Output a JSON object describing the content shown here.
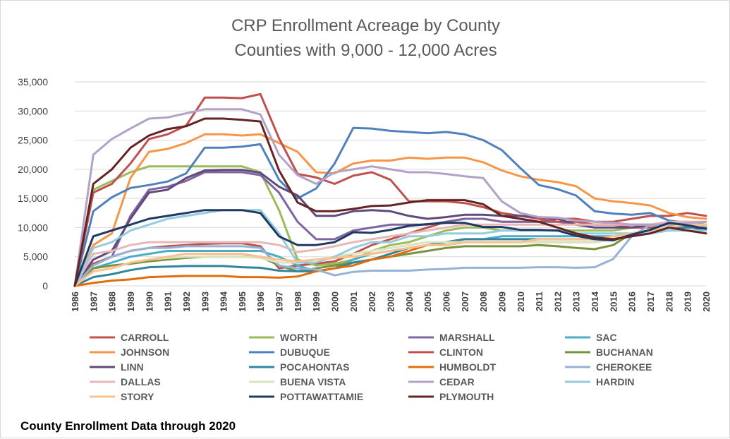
{
  "chart_data": {
    "type": "line",
    "title": "CRP Enrollment Acreage by County",
    "subtitle": "Counties with 9,000 - 12,000 Acres",
    "footnote": "County Enrollment Data through 2020",
    "xlabel": "",
    "ylabel": "",
    "ylim": [
      0,
      35000
    ],
    "ytick_step": 5000,
    "ytick_labels": [
      "0",
      "5,000",
      "10,000",
      "15,000",
      "20,000",
      "25,000",
      "30,000",
      "35,000"
    ],
    "grid": true,
    "legend_position": "bottom",
    "x": [
      "1986",
      "1987",
      "1988",
      "1989",
      "1990",
      "1991",
      "1992",
      "1993",
      "1994",
      "1995",
      "1996",
      "1997",
      "1998",
      "1999",
      "2000",
      "2001",
      "2002",
      "2003",
      "2004",
      "2005",
      "2006",
      "2007",
      "2008",
      "2009",
      "2010",
      "2011",
      "2012",
      "2013",
      "2014",
      "2015",
      "2016",
      "2017",
      "2018",
      "2019",
      "2020"
    ],
    "series": [
      {
        "name": "CARROLL",
        "color": "#c0504d",
        "values": [
          0,
          3800,
          5000,
          6000,
          6500,
          6800,
          7000,
          7200,
          7300,
          7300,
          6800,
          3000,
          3500,
          3800,
          4200,
          5500,
          7000,
          8000,
          9000,
          10000,
          11000,
          11500,
          11500,
          11000,
          11000,
          11000,
          11500,
          11500,
          11000,
          11000,
          11500,
          12000,
          12000,
          12500,
          12000
        ]
      },
      {
        "name": "WORTH",
        "color": "#9bbb59",
        "values": [
          0,
          16500,
          18000,
          19500,
          20500,
          20500,
          20500,
          20500,
          20500,
          20500,
          19500,
          13000,
          4500,
          3500,
          3800,
          4500,
          6000,
          7000,
          7500,
          8500,
          9500,
          10000,
          10000,
          9500,
          9500,
          9500,
          9500,
          9500,
          9500,
          9500,
          10000,
          10000,
          10500,
          10500,
          10500
        ]
      },
      {
        "name": "MARSHALL",
        "color": "#8064a2",
        "values": [
          0,
          3500,
          5000,
          12000,
          16500,
          17000,
          18000,
          19500,
          19500,
          19500,
          19000,
          16000,
          11000,
          8000,
          8000,
          9500,
          10000,
          10500,
          10500,
          10500,
          11000,
          11500,
          11500,
          11000,
          11000,
          11000,
          11000,
          10500,
          10500,
          10500,
          10500,
          10500,
          11000,
          11000,
          10500
        ]
      },
      {
        "name": "SAC",
        "color": "#4bacc6",
        "values": [
          0,
          3000,
          4000,
          5000,
          5500,
          6000,
          6000,
          6000,
          6000,
          6000,
          6000,
          5000,
          3500,
          2500,
          3000,
          4500,
          5500,
          6000,
          6500,
          7000,
          7500,
          8000,
          8000,
          8500,
          8500,
          8500,
          8500,
          8500,
          8500,
          8500,
          9000,
          9500,
          10500,
          10500,
          10500
        ]
      },
      {
        "name": "JOHNSON",
        "color": "#f79646",
        "values": [
          0,
          7000,
          9000,
          18500,
          23000,
          23500,
          24500,
          26000,
          26000,
          25800,
          26000,
          24500,
          23000,
          19500,
          19300,
          21000,
          21500,
          21500,
          22000,
          21800,
          22000,
          22000,
          21200,
          19800,
          18800,
          18200,
          17800,
          17100,
          15000,
          14500,
          14200,
          13800,
          12500,
          11800,
          11500
        ]
      },
      {
        "name": "DUBUQUE",
        "color": "#4f81bd",
        "values": [
          0,
          12800,
          15200,
          16800,
          17300,
          17900,
          19300,
          23700,
          23700,
          23900,
          24300,
          18200,
          15000,
          16700,
          21000,
          27100,
          27000,
          26600,
          26400,
          26200,
          26400,
          26000,
          25000,
          23300,
          20200,
          17300,
          16600,
          15500,
          12800,
          12400,
          12200,
          12500,
          11200,
          10800,
          10500
        ]
      },
      {
        "name": "CLINTON",
        "color": "#c0504d",
        "values": [
          0,
          16000,
          17500,
          21000,
          25200,
          26000,
          27500,
          32300,
          32300,
          32200,
          32900,
          25300,
          19200,
          18600,
          17500,
          18900,
          19500,
          18200,
          14500,
          14500,
          14500,
          14200,
          13500,
          12500,
          12000,
          11500,
          11000,
          11000,
          10500,
          10500,
          10000,
          10000,
          10000,
          10000,
          10000
        ]
      },
      {
        "name": "BUCHANAN",
        "color": "#77933c",
        "values": [
          0,
          3000,
          3500,
          3800,
          4200,
          4500,
          4800,
          5000,
          5000,
          5000,
          5000,
          3500,
          2500,
          3000,
          3500,
          4000,
          4500,
          5000,
          5500,
          6000,
          6500,
          6800,
          6800,
          6800,
          6800,
          7000,
          6800,
          6500,
          6300,
          7000,
          9000,
          9500,
          10500,
          10500,
          10500
        ]
      },
      {
        "name": "LINN",
        "color": "#604a7b",
        "values": [
          0,
          4500,
          6000,
          11500,
          16000,
          16500,
          18500,
          19800,
          19900,
          19900,
          19400,
          17000,
          15500,
          12000,
          12000,
          12800,
          13000,
          12800,
          12000,
          11500,
          11800,
          12200,
          12200,
          12000,
          12000,
          11800,
          11500,
          10500,
          10000,
          10000,
          10000,
          10500,
          10500,
          10200,
          9500
        ]
      },
      {
        "name": "POCAHONTAS",
        "color": "#31859c",
        "values": [
          0,
          1500,
          2000,
          2700,
          3200,
          3300,
          3400,
          3400,
          3400,
          3200,
          3100,
          2600,
          2500,
          2500,
          3000,
          4000,
          4500,
          5500,
          6500,
          7000,
          7500,
          8000,
          8000,
          8000,
          8000,
          8000,
          8000,
          8000,
          8000,
          8000,
          8500,
          9000,
          10000,
          10000,
          10000
        ]
      },
      {
        "name": "HUMBOLDT",
        "color": "#e46c0a",
        "values": [
          0,
          500,
          900,
          1100,
          1500,
          1600,
          1700,
          1700,
          1700,
          1500,
          1500,
          1400,
          1600,
          2500,
          3000,
          3500,
          4500,
          5000,
          6000,
          7000,
          7000,
          7500,
          7500,
          7500,
          7500,
          7500,
          7500,
          7500,
          7500,
          8000,
          9000,
          9500,
          10500,
          10500,
          10500
        ]
      },
      {
        "name": "CHEROKEE",
        "color": "#95b3d7",
        "values": [
          0,
          3500,
          5000,
          6000,
          6500,
          6500,
          6800,
          6800,
          6800,
          6800,
          6500,
          3500,
          3000,
          2800,
          1800,
          2400,
          2600,
          2600,
          2600,
          2800,
          2900,
          3100,
          3100,
          3100,
          3100,
          3200,
          3200,
          3100,
          3200,
          4600,
          8500,
          10500,
          10500,
          10500,
          10500
        ]
      },
      {
        "name": "DALLAS",
        "color": "#e6b9b8",
        "values": [
          0,
          5500,
          6000,
          7000,
          7500,
          7500,
          7500,
          7500,
          7500,
          7500,
          7500,
          7000,
          5800,
          6200,
          6800,
          7500,
          8000,
          8500,
          9000,
          9500,
          10000,
          10500,
          10500,
          10500,
          10500,
          10500,
          10500,
          10500,
          10500,
          10500,
          10500,
          10500,
          11000,
          11000,
          11000
        ]
      },
      {
        "name": "BUENA VISTA",
        "color": "#d7e4bd",
        "values": [
          0,
          2500,
          3000,
          4000,
          4500,
          4800,
          5000,
          5000,
          5000,
          5000,
          4800,
          4000,
          4000,
          4500,
          5000,
          5500,
          6000,
          6500,
          7000,
          7500,
          7500,
          7500,
          7500,
          7500,
          7500,
          7500,
          7500,
          7500,
          7500,
          8000,
          9000,
          9500,
          10500,
          10500,
          10500
        ]
      },
      {
        "name": "CEDAR",
        "color": "#b3a2c7",
        "values": [
          0,
          22500,
          25200,
          27000,
          28700,
          28900,
          29600,
          30300,
          30300,
          30300,
          29400,
          22500,
          19000,
          17500,
          19500,
          20000,
          20500,
          20000,
          19500,
          19500,
          19200,
          18800,
          18500,
          14500,
          12500,
          11800,
          11700,
          11200,
          11000,
          10800,
          10500,
          10500,
          10500,
          10800,
          11000
        ]
      },
      {
        "name": "HARDIN",
        "color": "#93cddd",
        "values": [
          0,
          6500,
          7500,
          9500,
          10500,
          11500,
          12000,
          12500,
          13000,
          13000,
          13000,
          9000,
          4000,
          4000,
          5000,
          6500,
          7500,
          7500,
          8500,
          8500,
          9000,
          9000,
          9000,
          9500,
          9500,
          9500,
          9500,
          9000,
          9000,
          9000,
          9000,
          9000,
          9500,
          9500,
          9500
        ]
      },
      {
        "name": "STORY",
        "color": "#fac090",
        "values": [
          0,
          2500,
          3000,
          4000,
          4500,
          5000,
          5500,
          5500,
          5500,
          5500,
          5000,
          4500,
          4200,
          4500,
          4800,
          5000,
          5500,
          6000,
          6500,
          7000,
          7000,
          7500,
          7500,
          7500,
          7500,
          8000,
          8000,
          8000,
          8000,
          8500,
          9000,
          9500,
          10000,
          10500,
          10500
        ]
      },
      {
        "name": "POTTAWATTAMIE",
        "color": "#1f3864",
        "values": [
          0,
          8500,
          9500,
          10500,
          11500,
          12000,
          12500,
          13000,
          13000,
          13000,
          12500,
          8500,
          7000,
          7000,
          7500,
          9200,
          9100,
          9600,
          10300,
          10600,
          10800,
          10800,
          10100,
          10100,
          9600,
          9600,
          9500,
          8600,
          8000,
          7800,
          8800,
          9600,
          10800,
          10400,
          9800
        ]
      },
      {
        "name": "PLYMOUTH",
        "color": "#632423",
        "values": [
          0,
          17500,
          20000,
          23700,
          25800,
          26900,
          27400,
          28700,
          28700,
          28500,
          28200,
          19800,
          14300,
          12800,
          12800,
          13200,
          13700,
          13800,
          14300,
          14700,
          14700,
          14700,
          14000,
          12000,
          11500,
          11000,
          10000,
          9000,
          8300,
          8000,
          8500,
          9000,
          10000,
          9500,
          9000
        ]
      }
    ]
  }
}
